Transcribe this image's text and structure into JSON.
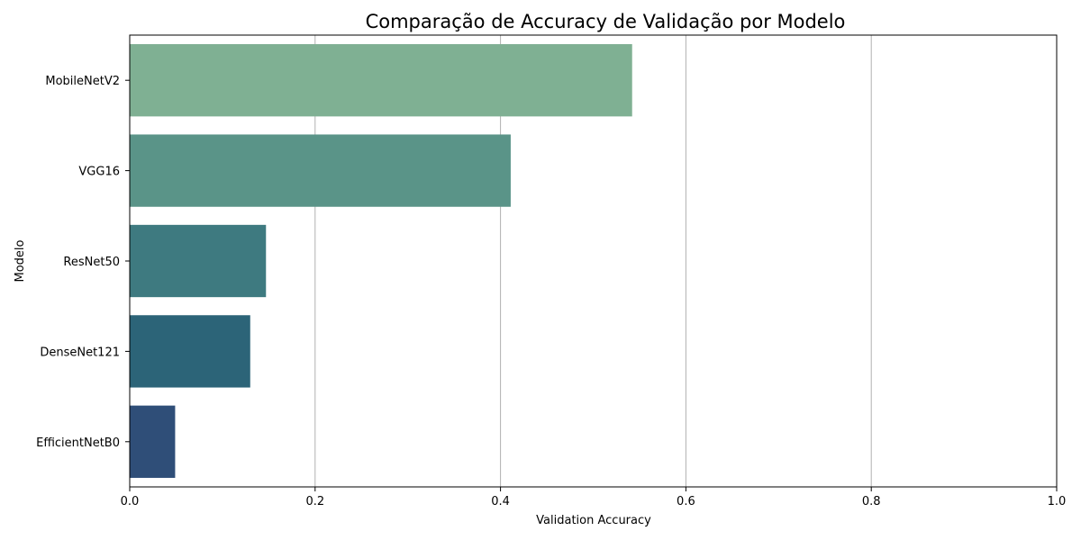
{
  "chart_data": {
    "type": "bar",
    "orientation": "horizontal",
    "title": "Comparação de Accuracy de Validação por Modelo",
    "xlabel": "Validation Accuracy",
    "ylabel": "Modelo",
    "xlim": [
      0,
      1.0
    ],
    "x_ticks": [
      "0.0",
      "0.2",
      "0.4",
      "0.6",
      "0.8",
      "1.0"
    ],
    "grid": "vertical",
    "categories": [
      "MobileNetV2",
      "VGG16",
      "ResNet50",
      "DenseNet121",
      "EfficientNetB0"
    ],
    "values": [
      0.542,
      0.411,
      0.147,
      0.13,
      0.049
    ],
    "colors": [
      "#7FB093",
      "#5A9488",
      "#3E7A80",
      "#2C6478",
      "#2F4E78"
    ]
  }
}
